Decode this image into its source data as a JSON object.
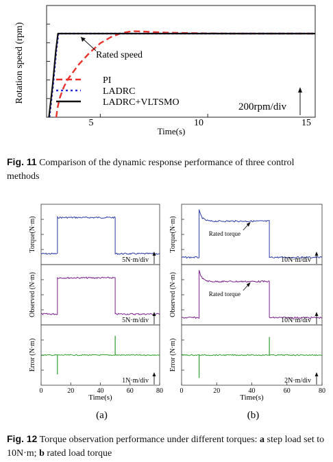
{
  "fig11": {
    "caption_label": "Fig. 11",
    "caption_text": " Comparison of the dynamic response performance of three control methods",
    "chart_data": {
      "type": "line",
      "ylabel": "Rotation speed (rpm)",
      "xlabel": "Time(s)",
      "xticks": [
        "5",
        "10",
        "15"
      ],
      "xlim": [
        2.5,
        15
      ],
      "annotation": "Rated speed",
      "scale_label": "200rpm/div",
      "series": [
        {
          "name": "PI",
          "color": "#e8322b",
          "style": "dashed",
          "points": [
            [
              2.95,
              -0.28
            ],
            [
              3.0,
              -0.1
            ],
            [
              3.1,
              0.05
            ],
            [
              3.3,
              0.22
            ],
            [
              3.5,
              0.34
            ],
            [
              4,
              0.55
            ],
            [
              4.5,
              0.72
            ],
            [
              5,
              0.86
            ],
            [
              5.5,
              0.95
            ],
            [
              6,
              1.01
            ],
            [
              6.5,
              1.035
            ],
            [
              7,
              1.03
            ],
            [
              7.5,
              1.022
            ],
            [
              8,
              1.015
            ],
            [
              9,
              1.008
            ],
            [
              10,
              1.003
            ],
            [
              11,
              1.0
            ],
            [
              12,
              1.0
            ],
            [
              15,
              1.0
            ]
          ]
        },
        {
          "name": "LADRC",
          "color": "#2a2ad8",
          "style": "dotted",
          "points": [
            [
              2.63,
              -0.3
            ],
            [
              2.8,
              0.25
            ],
            [
              2.95,
              0.75
            ],
            [
              3.05,
              1.0
            ],
            [
              15,
              1.0
            ]
          ]
        },
        {
          "name": "LADRC+VLTSMO",
          "color": "#111111",
          "style": "solid",
          "points": [
            [
              2.61,
              -0.3
            ],
            [
              2.78,
              0.25
            ],
            [
              2.93,
              0.75
            ],
            [
              3.03,
              1.0
            ],
            [
              15,
              1.0
            ]
          ]
        }
      ]
    }
  },
  "fig12": {
    "panels": [
      {
        "sublabel": "(a)",
        "xlabel": "Time(s)",
        "xticks": [
          "0",
          "20",
          "40",
          "60",
          "80"
        ],
        "subplots": [
          {
            "ylabel": "Torque(N·m)",
            "color": "#2b3aa8",
            "div_label": "5N·m/div",
            "annotation": "",
            "chart_data": {
              "type": "line",
              "steps": [
                [
                  0,
                  0.18
                ],
                [
                  11,
                  0.18
                ],
                [
                  11,
                  0.78
                ],
                [
                  50,
                  0.78
                ],
                [
                  50,
                  0.18
                ],
                [
                  80,
                  0.18
                ]
              ],
              "overshoot": 0
            }
          },
          {
            "ylabel": "Observed (N·m)",
            "color": "#7b1f8e",
            "div_label": "5N·m/div",
            "annotation": "",
            "chart_data": {
              "type": "line",
              "steps": [
                [
                  0,
                  0.18
                ],
                [
                  11,
                  0.18
                ],
                [
                  11,
                  0.78
                ],
                [
                  50,
                  0.78
                ],
                [
                  50,
                  0.18
                ],
                [
                  80,
                  0.18
                ]
              ],
              "overshoot": 0
            }
          },
          {
            "ylabel": "Error (N·m)",
            "color": "#2f9e2f",
            "div_label": "1N·m/div",
            "annotation": "",
            "chart_data": {
              "type": "line",
              "steps": [
                [
                  0,
                  0.5
                ],
                [
                  80,
                  0.5
                ]
              ],
              "spikes": [
                [
                  11,
                  -0.32
                ],
                [
                  50,
                  0.32
                ]
              ]
            }
          }
        ]
      },
      {
        "sublabel": "(b)",
        "xlabel": "Time(s)",
        "xticks": [
          "0",
          "20",
          "40",
          "60",
          "80"
        ],
        "subplots": [
          {
            "ylabel": "Torque(N·m)",
            "color": "#2b3aa8",
            "div_label": "10N·m/div",
            "annotation": "Rated torque",
            "chart_data": {
              "type": "line",
              "steps": [
                [
                  0,
                  0.12
                ],
                [
                  10,
                  0.12
                ],
                [
                  10,
                  0.72
                ],
                [
                  50,
                  0.72
                ],
                [
                  50,
                  0.12
                ],
                [
                  80,
                  0.12
                ]
              ],
              "overshoot": 0.18
            }
          },
          {
            "ylabel": "Observed (N·m)",
            "color": "#7b1f8e",
            "div_label": "10N·m/div",
            "annotation": "Rated torque",
            "chart_data": {
              "type": "line",
              "steps": [
                [
                  0,
                  0.12
                ],
                [
                  10,
                  0.12
                ],
                [
                  10,
                  0.72
                ],
                [
                  50,
                  0.72
                ],
                [
                  50,
                  0.12
                ],
                [
                  80,
                  0.12
                ]
              ],
              "overshoot": 0.18
            }
          },
          {
            "ylabel": "Error (N·m)",
            "color": "#2f9e2f",
            "div_label": "2N·m/div",
            "annotation": "",
            "chart_data": {
              "type": "line",
              "steps": [
                [
                  0,
                  0.5
                ],
                [
                  80,
                  0.5
                ]
              ],
              "spikes": [
                [
                  10,
                  -0.38
                ],
                [
                  50,
                  0.3
                ]
              ]
            }
          }
        ]
      }
    ],
    "caption_label": "Fig. 12",
    "caption_text_1": " Torque observation performance under different torques: ",
    "caption_a": "a",
    "caption_text_2": " step load set to 10N·m; ",
    "caption_b": "b",
    "caption_text_3": " rated load torque"
  }
}
